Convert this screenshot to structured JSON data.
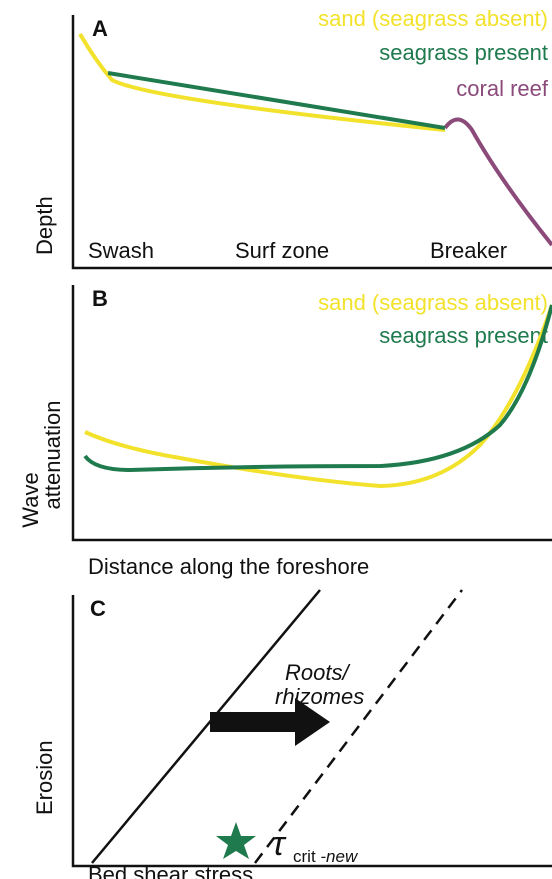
{
  "panels": [
    {
      "label": "A",
      "y_axis": "Depth",
      "legend": [
        "sand (seagrass absent)",
        "seagrass present",
        "coral reef"
      ],
      "zones": [
        "Swash",
        "Surf zone",
        "Breaker"
      ]
    },
    {
      "label": "B",
      "y_axis": [
        "Wave",
        "attenuation"
      ],
      "legend": [
        "sand (seagrass absent)",
        "seagrass present"
      ],
      "x_axis": "Distance along the foreshore"
    },
    {
      "label": "C",
      "y_axis": "Erosion",
      "x_axis": "Bed shear stress",
      "annotation": [
        "Roots/",
        "rhizomes"
      ],
      "threshold": {
        "symbol": "τ",
        "subscript": "crit",
        "suffix": " -new"
      }
    }
  ]
}
